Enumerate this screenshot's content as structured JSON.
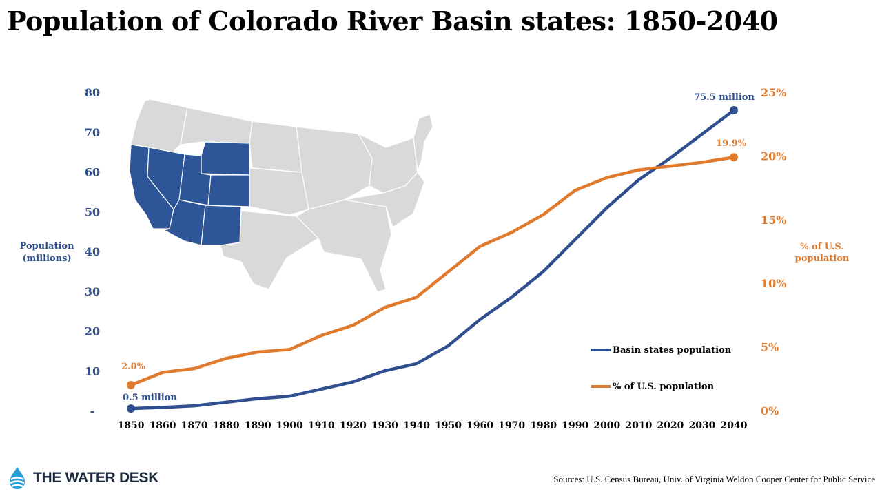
{
  "chart_data": {
    "type": "line",
    "title": "Population of Colorado River Basin states: 1850-2040",
    "x": [
      1850,
      1860,
      1870,
      1880,
      1890,
      1900,
      1910,
      1920,
      1930,
      1940,
      1950,
      1960,
      1970,
      1980,
      1990,
      2000,
      2010,
      2020,
      2030,
      2040
    ],
    "x_tick_labels": [
      "1850",
      "1860",
      "1870",
      "1880",
      "1890",
      "1900",
      "1910",
      "1920",
      "1930",
      "1940",
      "1950",
      "1960",
      "1970",
      "1980",
      "1990",
      "2000",
      "2010",
      "2020",
      "2030",
      "2040"
    ],
    "series": [
      {
        "name": "Basin states population",
        "axis": "left",
        "color": "#2e4e8f",
        "values": [
          0.5,
          0.8,
          1.2,
          2.1,
          3.0,
          3.6,
          5.4,
          7.2,
          10.0,
          11.8,
          16.3,
          22.9,
          28.5,
          35.0,
          43.0,
          51.0,
          58.0,
          63.5,
          69.5,
          75.5
        ]
      },
      {
        "name": "% of U.S. population",
        "axis": "right",
        "color": "#e07b2e",
        "values": [
          2.0,
          3.0,
          3.3,
          4.1,
          4.6,
          4.8,
          5.9,
          6.7,
          8.1,
          8.9,
          10.9,
          12.9,
          14.0,
          15.4,
          17.3,
          18.3,
          18.9,
          19.2,
          19.5,
          19.9
        ]
      }
    ],
    "y_left": {
      "label_lines": [
        "Population",
        "(millions)"
      ],
      "ylim": [
        0,
        80
      ],
      "ticks": [
        0,
        10,
        20,
        30,
        40,
        50,
        60,
        70,
        80
      ],
      "tick_labels": [
        "-",
        "10",
        "20",
        "30",
        "40",
        "50",
        "60",
        "70",
        "80"
      ]
    },
    "y_right": {
      "label_lines": [
        "% of U.S.",
        "population"
      ],
      "ylim": [
        0,
        25
      ],
      "ticks": [
        0,
        5,
        10,
        15,
        20,
        25
      ],
      "tick_labels": [
        "0%",
        "5%",
        "10%",
        "15%",
        "20%",
        "25%"
      ]
    },
    "annotations": {
      "blue_start": "0.5 million",
      "blue_end": "75.5 million",
      "orange_start": "2.0%",
      "orange_end": "19.9%"
    },
    "legend": {
      "placement": "bottom-right"
    },
    "grid": false
  },
  "map": {
    "highlight_color": "#2e5597",
    "base_color": "#d9d9d9"
  },
  "footer": {
    "logo_text": "THE WATER DESK",
    "source": "Sources: U.S. Census Bureau, Univ. of Virginia Weldon Cooper Center for Public Service"
  }
}
